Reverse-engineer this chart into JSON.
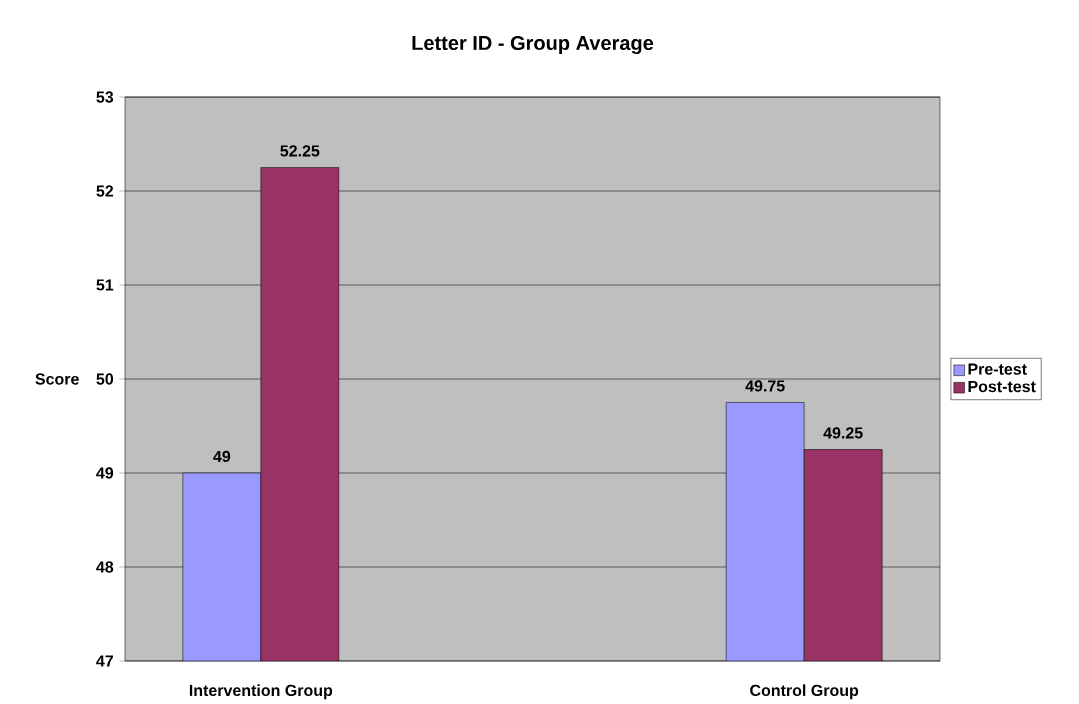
{
  "chart_data": {
    "type": "bar",
    "title": "Letter ID - Group Average",
    "ylabel": "Score",
    "categories": [
      "Intervention Group",
      null,
      "Control Group"
    ],
    "series": [
      {
        "name": "Pre-test",
        "color": "#9999ff",
        "values": [
          49,
          null,
          49.75
        ]
      },
      {
        "name": "Post-test",
        "color": "#993366",
        "values": [
          52.25,
          null,
          49.25
        ]
      }
    ],
    "ylim": [
      47,
      53
    ],
    "yticks": [
      47,
      48,
      49,
      50,
      51,
      52,
      53
    ],
    "grid": "y",
    "legend": "right",
    "data_labels": true
  }
}
